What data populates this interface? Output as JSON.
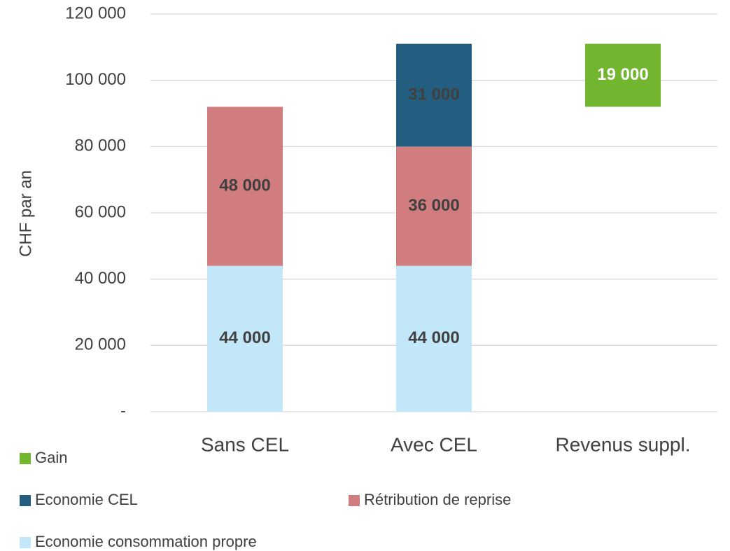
{
  "chart_data": {
    "type": "bar",
    "stacked": true,
    "y_label": "CHF par an",
    "categories": [
      "Sans CEL",
      "Avec CEL",
      "Revenus suppl."
    ],
    "series": [
      {
        "name": "Economie consommation propre",
        "color": "#c1e7f8",
        "values": [
          44000,
          44000,
          null
        ],
        "value_labels": [
          "44 000",
          "44 000",
          null
        ]
      },
      {
        "name": "Rétribution de reprise",
        "color": "#d17d7f",
        "values": [
          48000,
          36000,
          null
        ],
        "value_labels": [
          "48 000",
          "36 000",
          null
        ]
      },
      {
        "name": "Economie CEL",
        "color": "#235e80",
        "values": [
          null,
          31000,
          null
        ],
        "value_labels": [
          null,
          "31 000",
          null
        ]
      },
      {
        "name": "Gain",
        "color": "#72b52f",
        "values": [
          null,
          null,
          19000
        ],
        "value_labels": [
          null,
          null,
          "19 000"
        ]
      }
    ],
    "ylim": [
      0,
      120000
    ],
    "yticks": [
      {
        "value": 0,
        "label": "-"
      },
      {
        "value": 20000,
        "label": "20 000"
      },
      {
        "value": 40000,
        "label": "40 000"
      },
      {
        "value": 60000,
        "label": "60 000"
      },
      {
        "value": 80000,
        "label": "80 000"
      },
      {
        "value": 100000,
        "label": "100 000"
      },
      {
        "value": 120000,
        "label": "120 000"
      }
    ],
    "grid": true,
    "legend": "bottom"
  }
}
